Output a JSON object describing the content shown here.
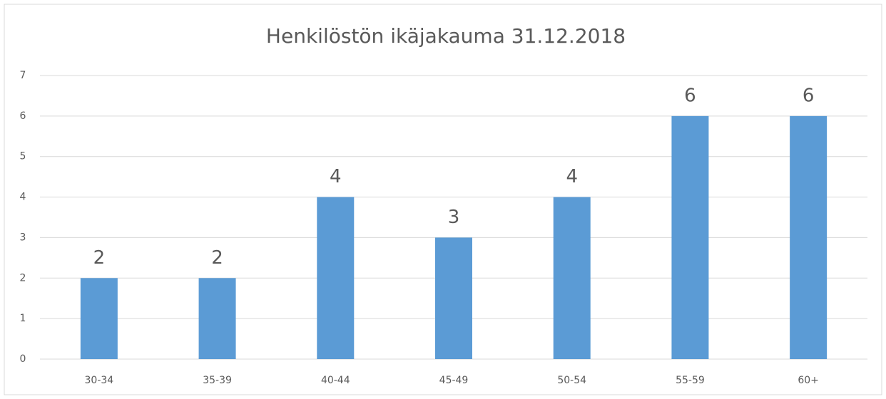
{
  "chart_data": {
    "type": "bar",
    "title": "Henkilöstön ikäjakauma 31.12.2018",
    "categories": [
      "30-34",
      "35-39",
      "40-44",
      "45-49",
      "50-54",
      "55-59",
      "60+"
    ],
    "values": [
      2,
      2,
      4,
      3,
      4,
      6,
      6
    ],
    "color": "#5b9bd5",
    "ylim": [
      0,
      7
    ],
    "yticks": [
      0,
      1,
      2,
      3,
      4,
      5,
      6,
      7
    ],
    "grid": true,
    "data_labels": true
  }
}
